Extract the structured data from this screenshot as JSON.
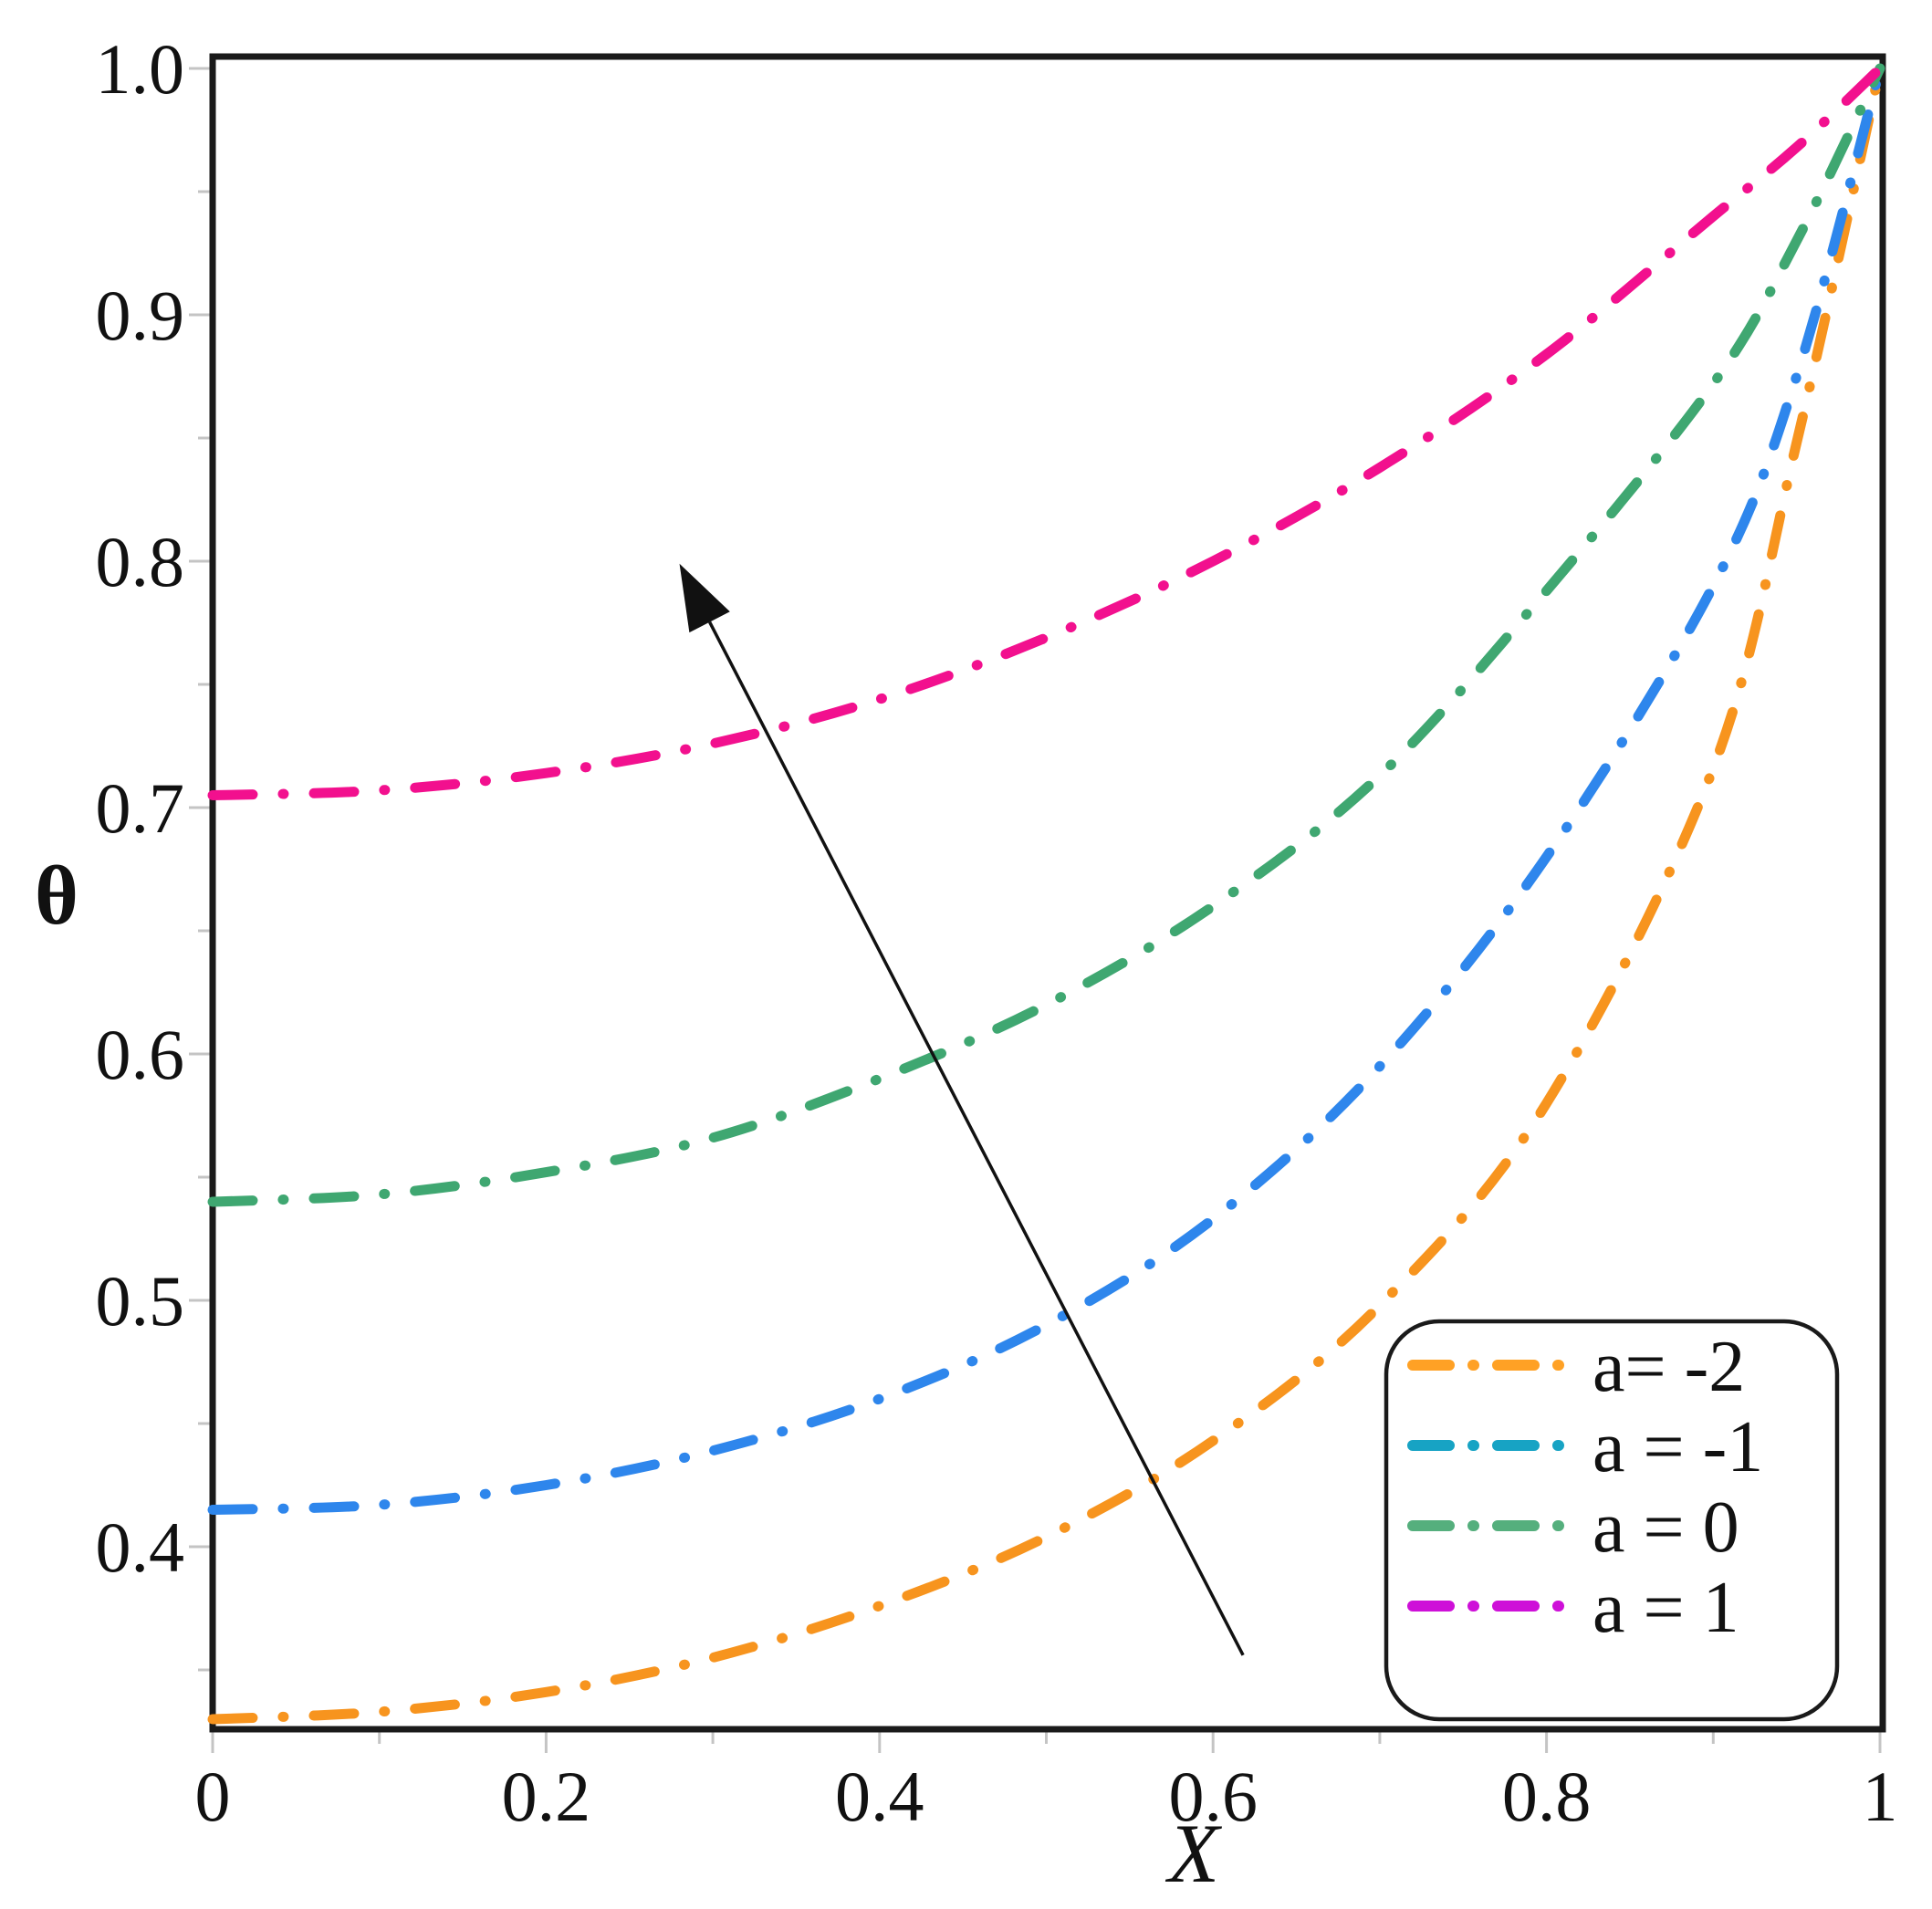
{
  "figure": {
    "background": "#ffffff",
    "frame_color": "#1a1a1a",
    "tick_color": "#c4c4c4"
  },
  "chart_data": {
    "type": "line",
    "title": "",
    "xlabel": "X",
    "ylabel": "θ",
    "xlim": [
      0,
      1
    ],
    "ylim": [
      0.326,
      1.0
    ],
    "grid": false,
    "x_tick_values": [
      0,
      0.2,
      0.4,
      0.6,
      0.8,
      1
    ],
    "x_tick_labels": [
      "0",
      "0.2",
      "0.4",
      "0.6",
      "0.8",
      "1"
    ],
    "x_minor_ticks": [
      0.1,
      0.3,
      0.5,
      0.7,
      0.9
    ],
    "y_tick_values": [
      0.4,
      0.5,
      0.6,
      0.7,
      0.8,
      0.9,
      1.0
    ],
    "y_tick_labels": [
      "0.4",
      "0.5",
      "0.6",
      "0.7",
      "0.8",
      "0.9",
      "1.0"
    ],
    "y_minor_ticks": [
      0.35,
      0.45,
      0.55,
      0.65,
      0.75,
      0.85,
      0.95
    ],
    "x": [
      0,
      0.1,
      0.2,
      0.3,
      0.4,
      0.5,
      0.6,
      0.7,
      0.8,
      0.9,
      0.95,
      1.0
    ],
    "series": [
      {
        "name": "a= -2",
        "curve_color": "#F7941E",
        "legend_color": "#FFA125",
        "line_style": "dash-dot",
        "values": [
          0.33,
          0.333,
          0.341,
          0.355,
          0.376,
          0.404,
          0.443,
          0.498,
          0.58,
          0.716,
          0.848,
          1.0
        ]
      },
      {
        "name": "a = -1",
        "curve_color": "#2E86EC",
        "legend_color": "#17A3C4",
        "line_style": "dash-dot",
        "values": [
          0.415,
          0.417,
          0.425,
          0.439,
          0.46,
          0.49,
          0.533,
          0.595,
          0.68,
          0.79,
          0.875,
          1.0
        ]
      },
      {
        "name": "a = 0",
        "curve_color": "#3FA771",
        "legend_color": "#55AF7D",
        "line_style": "dash-dot",
        "values": [
          0.54,
          0.543,
          0.552,
          0.566,
          0.59,
          0.62,
          0.66,
          0.713,
          0.788,
          0.872,
          0.93,
          1.0
        ]
      },
      {
        "name": "a = 1",
        "curve_color": "#F2108E",
        "legend_color": "#CE10D8",
        "line_style": "dash-dot",
        "values": [
          0.705,
          0.707,
          0.714,
          0.726,
          0.744,
          0.769,
          0.8,
          0.838,
          0.884,
          0.94,
          0.968,
          1.0
        ]
      }
    ],
    "legend": {
      "position": "bottom-right",
      "entries": [
        "a= -2",
        "a = -1",
        "a = 0",
        "a = 1"
      ]
    },
    "arrow_annotation": {
      "from_xy": [
        0.618,
        0.356
      ],
      "to_xy": [
        0.28,
        0.799
      ],
      "meaning": "direction of increasing a"
    }
  }
}
